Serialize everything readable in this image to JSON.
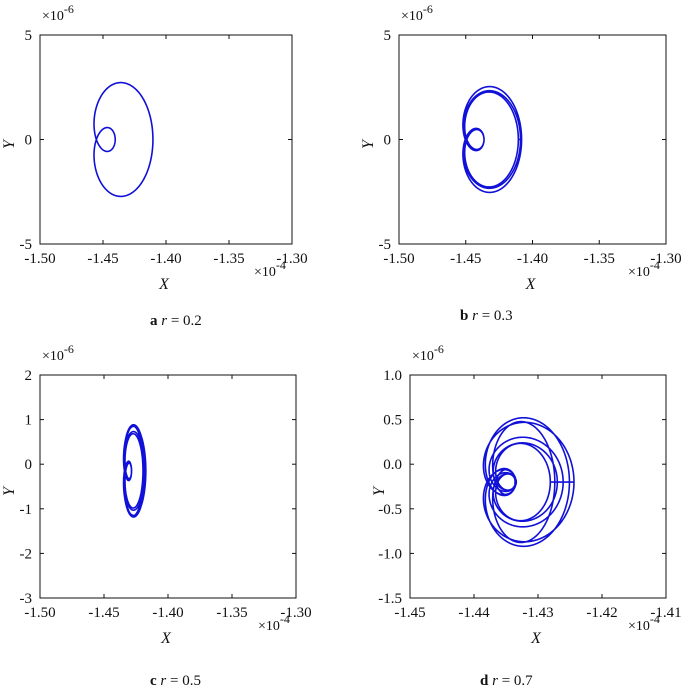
{
  "chart_data": [
    {
      "type": "line",
      "panel": "a",
      "caption_letter": "a",
      "caption_param": "r",
      "caption_value": "= 0.2",
      "xlabel": "X",
      "ylabel": "Y",
      "x_multiplier": "×10",
      "x_exponent": "-4",
      "y_multiplier": "×10",
      "y_exponent": "-6",
      "xlim": [
        -1.5,
        -1.3
      ],
      "ylim": [
        -5,
        5
      ],
      "xticks": [
        -1.5,
        -1.45,
        -1.4,
        -1.35,
        -1.3
      ],
      "xtick_labels": [
        "-1.50",
        "-1.45",
        "-1.40",
        "-1.35",
        "-1.30"
      ],
      "yticks": [
        -5,
        0,
        5
      ],
      "ytick_labels": [
        "-5",
        "0",
        "5"
      ],
      "color": "#1010d8",
      "curve": {
        "xc": -1.4403,
        "yc": 0,
        "big_r": 0.0315,
        "big_ry": 4.55,
        "small_r": 0.0105,
        "small_ry": 1.3,
        "loops": 1,
        "jitter": 0.0
      }
    },
    {
      "type": "line",
      "panel": "b",
      "caption_letter": "b",
      "caption_param": "r",
      "caption_value": "= 0.3",
      "xlabel": "X",
      "ylabel": "Y",
      "x_multiplier": "×10",
      "x_exponent": "-4",
      "y_multiplier": "×10",
      "y_exponent": "-6",
      "xlim": [
        -1.5,
        -1.3
      ],
      "ylim": [
        -5,
        5
      ],
      "xticks": [
        -1.5,
        -1.45,
        -1.4,
        -1.35,
        -1.3
      ],
      "xtick_labels": [
        "-1.50",
        "-1.45",
        "-1.40",
        "-1.35",
        "-1.30"
      ],
      "yticks": [
        -5,
        0,
        5
      ],
      "ytick_labels": [
        "-5",
        "0",
        "5"
      ],
      "color": "#1010d8",
      "curve": {
        "xc": -1.4363,
        "yc": 0,
        "big_r": 0.0285,
        "big_ry": 4.0,
        "small_r": 0.0075,
        "small_ry": 1.0,
        "loops": 3,
        "jitter": 0.06
      }
    },
    {
      "type": "line",
      "panel": "c",
      "caption_letter": "c",
      "caption_param": "r",
      "caption_value": "= 0.5",
      "xlabel": "X",
      "ylabel": "Y",
      "x_multiplier": "×10",
      "x_exponent": "-4",
      "y_multiplier": "×10",
      "y_exponent": "-6",
      "xlim": [
        -1.5,
        -1.3
      ],
      "ylim": [
        -3,
        2
      ],
      "xticks": [
        -1.5,
        -1.45,
        -1.4,
        -1.35,
        -1.3
      ],
      "xtick_labels": [
        "-1.50",
        "-1.45",
        "-1.40",
        "-1.35",
        "-1.30"
      ],
      "yticks": [
        -3,
        -2,
        -1,
        0,
        1,
        2
      ],
      "ytick_labels": [
        "-3",
        "-2",
        "-1",
        "0",
        "1",
        "2"
      ],
      "color": "#1010d8",
      "curve": {
        "xc": -1.4285,
        "yc": -0.15,
        "big_r": 0.0105,
        "big_ry": 1.55,
        "small_r": 0.004,
        "small_ry": 0.35,
        "loops": 5,
        "jitter": 0.12
      }
    },
    {
      "type": "line",
      "panel": "d",
      "caption_letter": "d",
      "caption_param": "r",
      "caption_value": "= 0.7",
      "xlabel": "X",
      "ylabel": "Y",
      "x_multiplier": "×10",
      "x_exponent": "-4",
      "y_multiplier": "×10",
      "y_exponent": "-6",
      "xlim": [
        -1.45,
        -1.41
      ],
      "ylim": [
        -1.5,
        1.0
      ],
      "xticks": [
        -1.45,
        -1.44,
        -1.43,
        -1.42,
        -1.41
      ],
      "xtick_labels": [
        "-1.45",
        "-1.44",
        "-1.43",
        "-1.42",
        "-1.41"
      ],
      "yticks": [
        -1.5,
        -1.0,
        -0.5,
        0.0,
        0.5,
        1.0
      ],
      "ytick_labels": [
        "-1.5",
        "-1.0",
        "-0.5",
        "0.0",
        "0.5",
        "1.0"
      ],
      "color": "#1010d8",
      "curve": {
        "xc": -1.4335,
        "yc": -0.2,
        "big_r": 0.0075,
        "big_ry": 0.95,
        "small_r": 0.002,
        "small_ry": 0.15,
        "loops": 6,
        "jitter": 0.28
      }
    }
  ]
}
